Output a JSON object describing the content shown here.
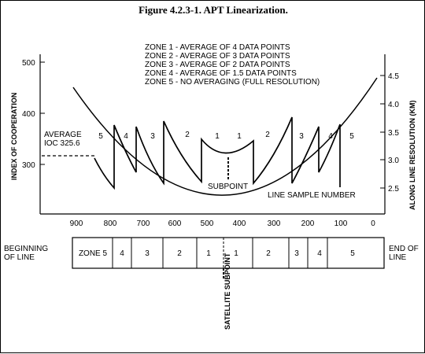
{
  "title": "Figure 4.2.3-1.  APT Linearization.",
  "legend": [
    "ZONE 1 - AVERAGE OF 4 DATA POINTS",
    "ZONE 2 - AVERAGE OF 3 DATA POINTS",
    "ZONE 3 - AVERAGE OF 2 DATA POINTS",
    "ZONE 4 - AVERAGE OF 1.5 DATA POINTS",
    "ZONE 5 - NO AVERAGING (FULL RESOLUTION)"
  ],
  "axes": {
    "left_label": "INDEX OF COOPERATION",
    "right_label": "ALONG LINE RESOLUTION (KM)",
    "x_label": "LINE SAMPLE NUMBER",
    "left_ticks": [
      "500",
      "400",
      "300"
    ],
    "right_ticks": [
      "4.5",
      "4.0",
      "3.5",
      "3.0",
      "2.5"
    ],
    "x_ticks": [
      "900",
      "800",
      "700",
      "600",
      "500",
      "400",
      "300",
      "200",
      "100",
      "0"
    ]
  },
  "annotations": {
    "average_line1": "AVERAGE",
    "average_line2": "IOC 325.6",
    "subpoint": "SUBPOINT"
  },
  "curve_zone_labels": [
    "5",
    "4",
    "3",
    "2",
    "1",
    "1",
    "2",
    "3",
    "4",
    "5"
  ],
  "bar": {
    "left_label_line1": "BEGINNING",
    "left_label_line2": "OF LINE",
    "right_label_line1": "END OF",
    "right_label_line2": "LINE",
    "segments": [
      "ZONE 5",
      "4",
      "3",
      "2",
      "1",
      "1",
      "2",
      "3",
      "4",
      "5"
    ],
    "satellite_subpoint": "SATELLITE SUBPOINT"
  }
}
